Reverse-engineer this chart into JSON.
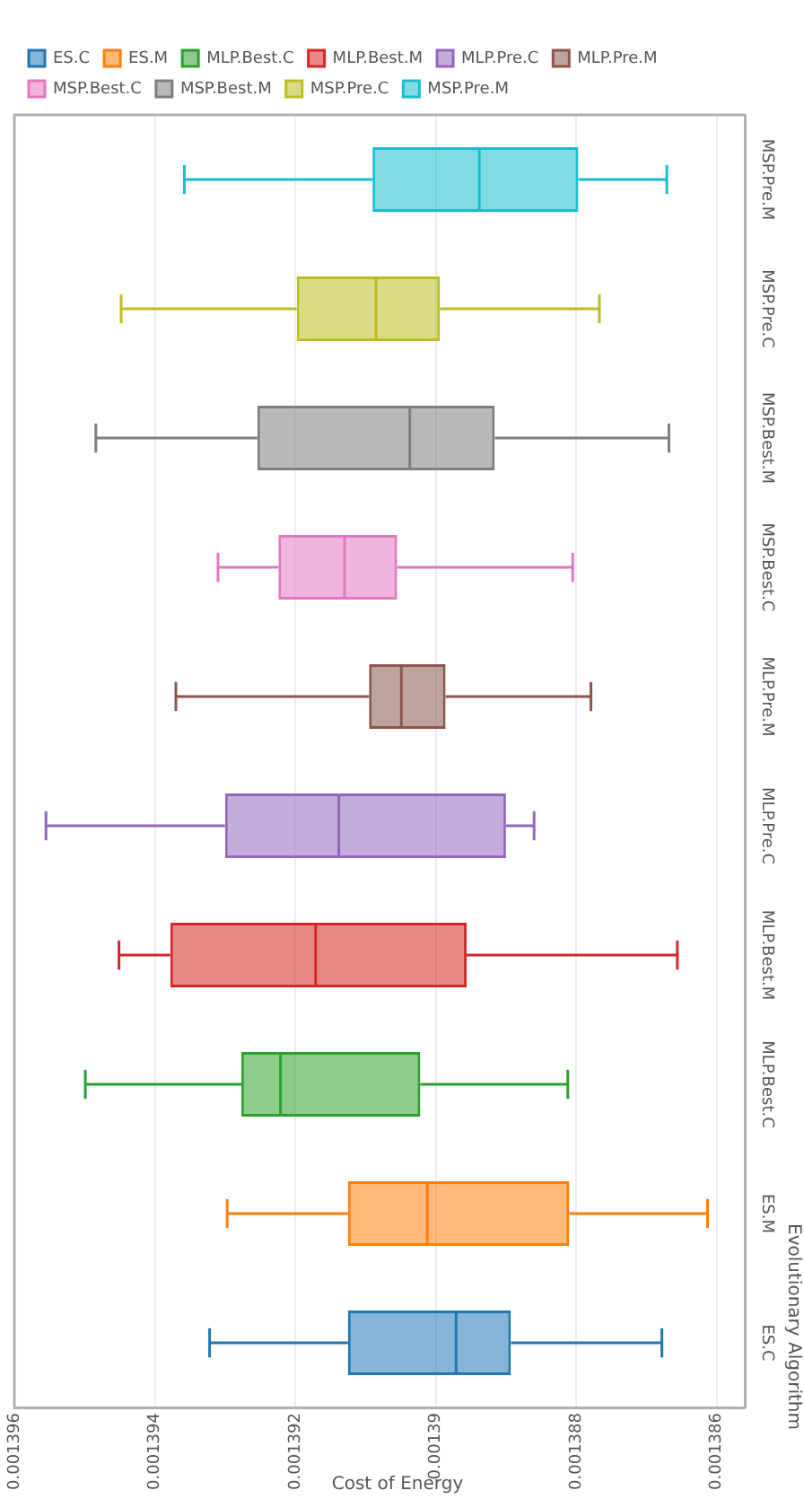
{
  "chart_data": {
    "type": "box",
    "orientation": "horizontal",
    "xlabel": "Cost of Energy",
    "ylabel": "Evolutionary Algorithm",
    "categories": [
      "MSP.Pre.M",
      "MSP.Pre.C",
      "MSP.Best.M",
      "MSP.Best.C",
      "MLP.Pre.M",
      "MLP.Pre.C",
      "MLP.Best.M",
      "MLP.Best.C",
      "ES.M",
      "ES.C"
    ],
    "series": [
      {
        "name": "ES.C",
        "color": "#1f77b4",
        "boxes": [
          null,
          null,
          null,
          null,
          null,
          null,
          null,
          null,
          null,
          {
            "low": 0.00138678,
            "q1": 0.00138893,
            "median": 0.00138971,
            "q3": 0.00139125,
            "high": 0.00139322
          }
        ]
      },
      {
        "name": "ES.M",
        "color": "#ff7f0e",
        "boxes": [
          null,
          null,
          null,
          null,
          null,
          null,
          null,
          null,
          {
            "low": 0.00138613,
            "q1": 0.0013881,
            "median": 0.00139012,
            "q3": 0.00139125,
            "high": 0.00139297
          },
          null
        ]
      },
      {
        "name": "MLP.Best.C",
        "color": "#2ca02c",
        "boxes": [
          null,
          null,
          null,
          null,
          null,
          null,
          null,
          {
            "low": 0.00138812,
            "q1": 0.00139022,
            "median": 0.00139221,
            "q3": 0.00139277,
            "high": 0.00139499
          },
          null,
          null
        ]
      },
      {
        "name": "MLP.Best.M",
        "color": "#d62728",
        "boxes": [
          null,
          null,
          null,
          null,
          null,
          null,
          {
            "low": 0.00138656,
            "q1": 0.00138956,
            "median": 0.00139171,
            "q3": 0.00139378,
            "high": 0.00139451
          },
          null,
          null,
          null
        ]
      },
      {
        "name": "MLP.Pre.C",
        "color": "#9467bd",
        "boxes": [
          null,
          null,
          null,
          null,
          null,
          {
            "low": 0.0013886,
            "q1": 0.001389,
            "median": 0.00139138,
            "q3": 0.001393,
            "high": 0.00139555
          },
          null,
          null,
          null,
          null
        ]
      },
      {
        "name": "MLP.Pre.M",
        "color": "#8c564b",
        "boxes": [
          null,
          null,
          null,
          null,
          {
            "low": 0.00138779,
            "q1": 0.00138986,
            "median": 0.00139049,
            "q3": 0.00139095,
            "high": 0.0013937
          },
          null,
          null,
          null,
          null,
          null
        ]
      },
      {
        "name": "MSP.Best.C",
        "color": "#e377c2",
        "boxes": [
          null,
          null,
          null,
          {
            "low": 0.00138805,
            "q1": 0.00139055,
            "median": 0.0013913,
            "q3": 0.00139224,
            "high": 0.0013931
          },
          null,
          null,
          null,
          null,
          null,
          null
        ]
      },
      {
        "name": "MSP.Best.M",
        "color": "#7f7f7f",
        "boxes": [
          null,
          null,
          {
            "low": 0.00138668,
            "q1": 0.00138916,
            "median": 0.00139037,
            "q3": 0.00139254,
            "high": 0.00139484
          },
          null,
          null,
          null,
          null,
          null,
          null,
          null
        ]
      },
      {
        "name": "MSP.Pre.C",
        "color": "#bcbd22",
        "boxes": [
          null,
          {
            "low": 0.00138767,
            "q1": 0.00138994,
            "median": 0.00139085,
            "q3": 0.00139198,
            "high": 0.00139448
          },
          null,
          null,
          null,
          null,
          null,
          null,
          null,
          null
        ]
      },
      {
        "name": "MSP.Pre.M",
        "color": "#17becf",
        "boxes": [
          {
            "low": 0.00138671,
            "q1": 0.00138797,
            "median": 0.00138938,
            "q3": 0.0013909,
            "high": 0.00139358
          },
          null,
          null,
          null,
          null,
          null,
          null,
          null,
          null,
          null
        ]
      }
    ],
    "xlim": [
      0.001396,
      0.0013856
    ],
    "xticks": [
      0.001396,
      0.001394,
      0.001392,
      0.00139,
      0.001388,
      0.001386
    ],
    "grid": "x",
    "legend": "top left"
  }
}
